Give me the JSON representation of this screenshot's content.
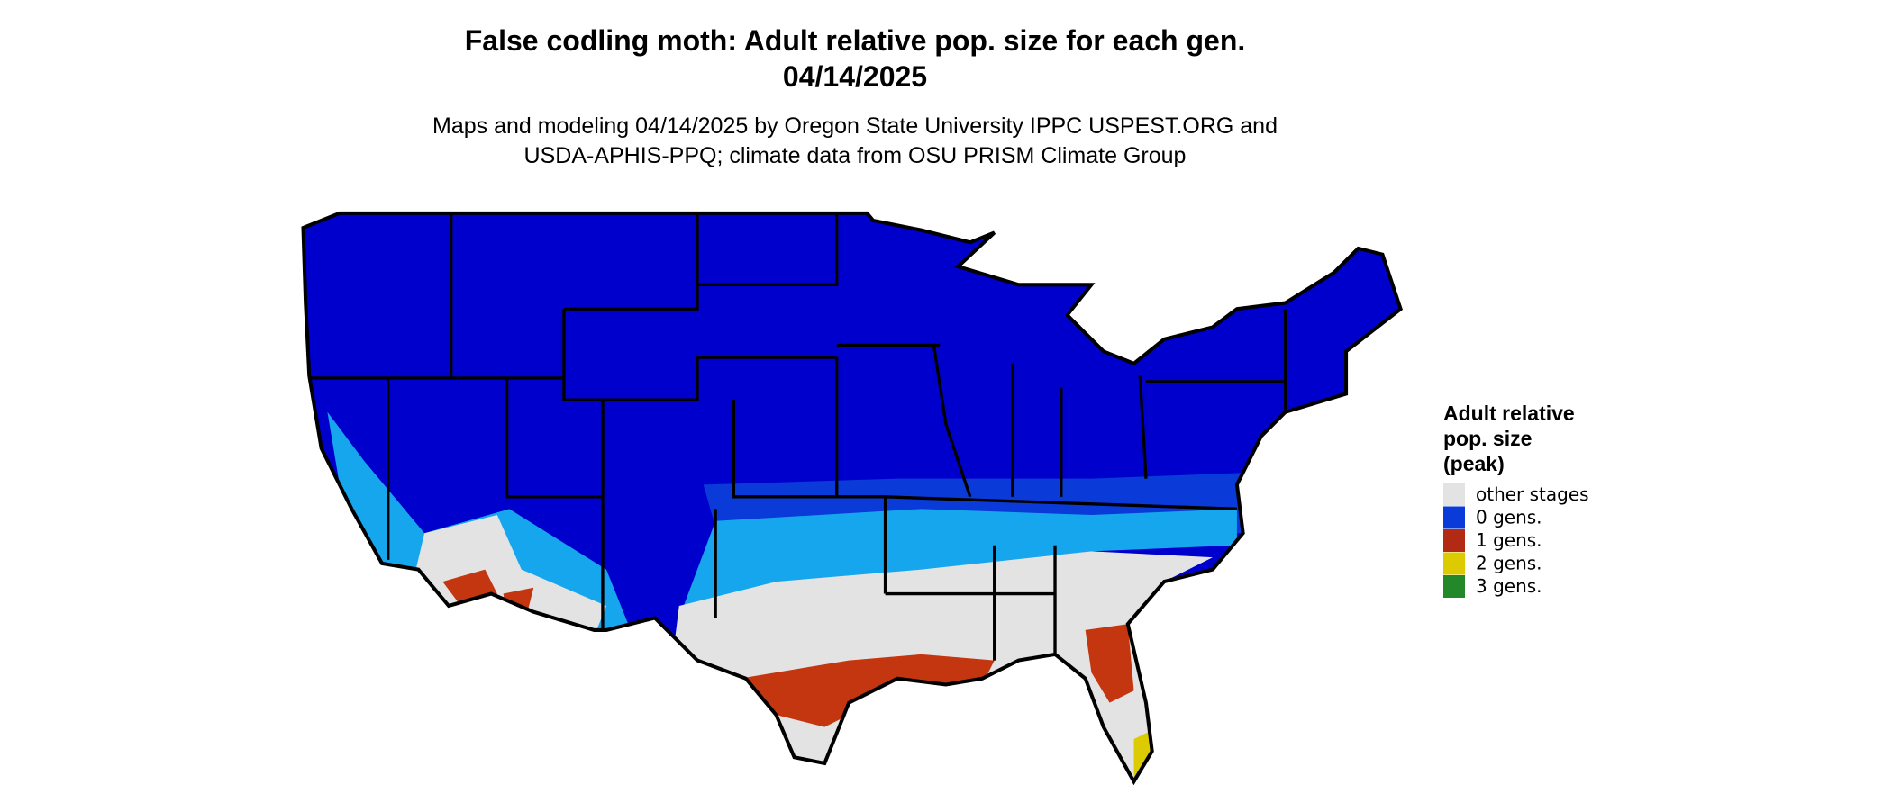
{
  "header": {
    "title": "False codling moth: Adult relative pop. size for each gen.",
    "date": "04/14/2025",
    "subtitle": [
      "Maps and modeling 04/14/2025 by Oregon State University IPPC USPEST.ORG and",
      "USDA-APHIS-PPQ; climate data from OSU PRISM Climate Group"
    ]
  },
  "legend": {
    "title": [
      "Adult relative",
      "pop. size",
      "(peak)"
    ],
    "items": [
      {
        "label": "other stages",
        "color": "#e3e3e3"
      },
      {
        "label": "0 gens.",
        "color": "#0a3ad8"
      },
      {
        "label": "1 gens.",
        "color": "#b22a14"
      },
      {
        "label": "2 gens.",
        "color": "#dccb00"
      },
      {
        "label": "3 gens.",
        "color": "#22882a"
      }
    ]
  }
}
